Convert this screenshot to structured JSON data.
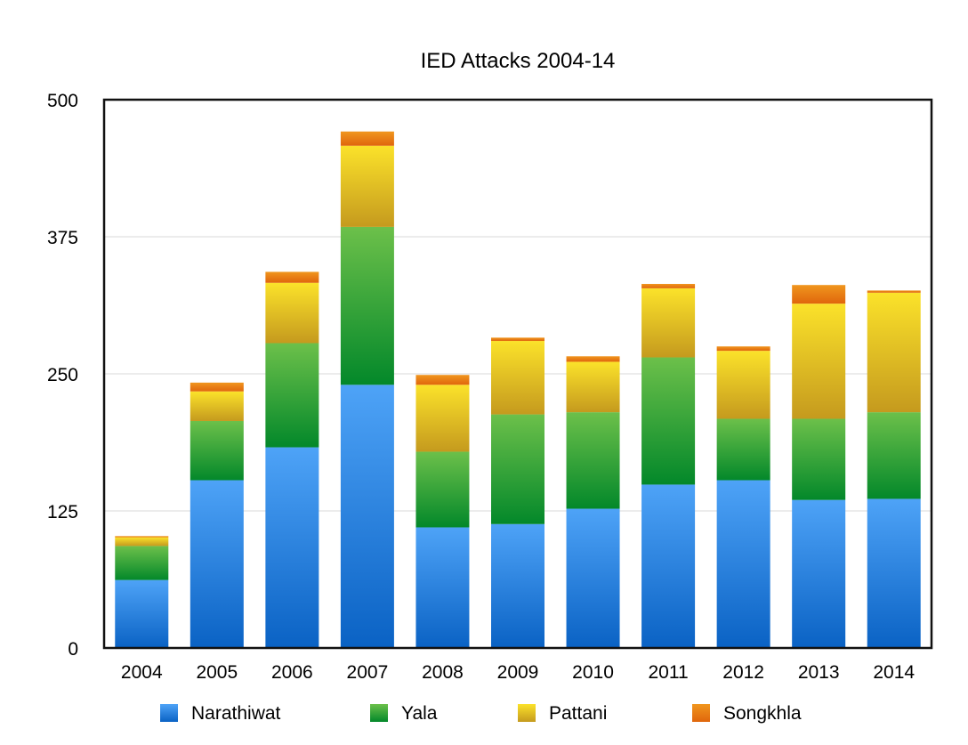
{
  "chart_data": {
    "type": "bar",
    "stacked": true,
    "title": "IED Attacks 2004-14",
    "xlabel": "",
    "ylabel": "",
    "ylim": [
      0,
      500
    ],
    "yticks": [
      "0",
      "125",
      "250",
      "375",
      "500"
    ],
    "ytick_values": [
      0,
      125,
      250,
      375,
      500
    ],
    "grid": true,
    "legend_position": "bottom",
    "categories": [
      "2004",
      "2005",
      "2006",
      "2007",
      "2008",
      "2009",
      "2010",
      "2011",
      "2012",
      "2013",
      "2014"
    ],
    "series": [
      {
        "name": "Narathiwat",
        "color_top": "#4ea3f7",
        "color_bottom": "#0a62c4",
        "values": [
          62,
          153,
          183,
          240,
          110,
          113,
          127,
          149,
          153,
          135,
          136
        ]
      },
      {
        "name": "Yala",
        "color_top": "#6cc04a",
        "color_bottom": "#03882a",
        "values": [
          31,
          54,
          95,
          144,
          69,
          100,
          88,
          116,
          56,
          74,
          79
        ]
      },
      {
        "name": "Pattani",
        "color_top": "#fbe22a",
        "color_bottom": "#c59a1e",
        "values": [
          8,
          27,
          55,
          74,
          61,
          67,
          46,
          63,
          62,
          105,
          109
        ]
      },
      {
        "name": "Songkhla",
        "color_top": "#f0961e",
        "color_bottom": "#e0660c",
        "values": [
          1,
          8,
          10,
          13,
          9,
          3,
          5,
          4,
          4,
          17,
          2
        ]
      }
    ]
  }
}
